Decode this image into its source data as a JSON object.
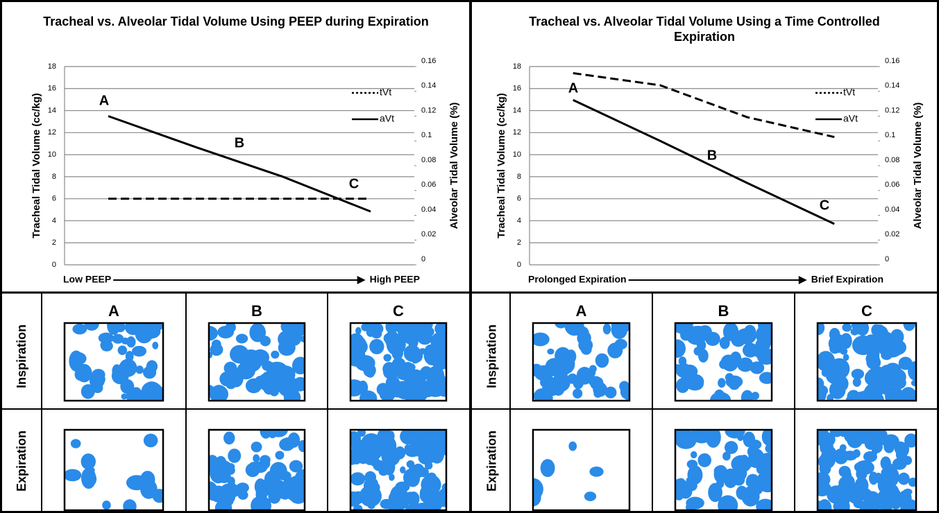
{
  "chart_data": [
    {
      "type": "line",
      "title": "Tracheal vs. Alveolar Tidal Volume Using PEEP during Expiration",
      "ylabel": "Tracheal Tidal Volume (cc/kg)",
      "y2label": "Alveolar Tidal Volume (%)",
      "x_start_label": "Low PEEP",
      "x_end_label": "High PEEP",
      "categories": [
        null,
        null,
        null,
        null
      ],
      "series": [
        {
          "name": "tVt",
          "color": "#000000",
          "linestyle": "dashed",
          "values": [
            6,
            6,
            6,
            6
          ]
        },
        {
          "name": "aVt",
          "color": "#000000",
          "linestyle": "solid",
          "axis": "y2",
          "values": [
            0.12,
            0.095,
            0.071,
            0.043
          ]
        }
      ],
      "annotations": [
        "A",
        "B",
        "C"
      ],
      "ylim": [
        0,
        18
      ],
      "yticks": [
        0,
        2,
        4,
        6,
        8,
        10,
        12,
        14,
        16,
        18
      ],
      "y2lim": [
        0,
        0.16
      ],
      "y2ticks": [
        0,
        0.02,
        0.04,
        0.06,
        0.08,
        0.1,
        0.12,
        0.14,
        0.16
      ],
      "grid": true,
      "legend": "upper right"
    },
    {
      "type": "line",
      "title": "Tracheal vs. Alveolar Tidal Volume Using a Time Controlled Expiration",
      "ylabel": "Tracheal Tidal Volume (cc/kg)",
      "y2label": "Alveolar Tidal Volume (%)",
      "x_start_label": "Prolonged Expiration",
      "x_end_label": "Brief Expiration",
      "categories": [
        null,
        null,
        null,
        null
      ],
      "series": [
        {
          "name": "tVt",
          "color": "#000000",
          "linestyle": "dashed",
          "values": [
            17.4,
            16.3,
            13.4,
            11.6
          ]
        },
        {
          "name": "aVt",
          "color": "#000000",
          "linestyle": "solid",
          "axis": "y2",
          "values": [
            0.133,
            0.1,
            0.066,
            0.033
          ]
        }
      ],
      "annotations": [
        "A",
        "B",
        "C"
      ],
      "ylim": [
        0,
        18
      ],
      "yticks": [
        0,
        2,
        4,
        6,
        8,
        10,
        12,
        14,
        16,
        18
      ],
      "y2lim": [
        0,
        0.16
      ],
      "y2ticks": [
        0,
        0.02,
        0.04,
        0.06,
        0.08,
        0.1,
        0.12,
        0.14,
        0.16
      ],
      "grid": true,
      "legend": "upper right"
    }
  ],
  "panels": [
    {
      "columns": [
        "A",
        "B",
        "C"
      ],
      "rows": [
        "Inspiration",
        "Expiration"
      ]
    },
    {
      "columns": [
        "A",
        "B",
        "C"
      ],
      "rows": [
        "Inspiration",
        "Expiration"
      ]
    }
  ]
}
